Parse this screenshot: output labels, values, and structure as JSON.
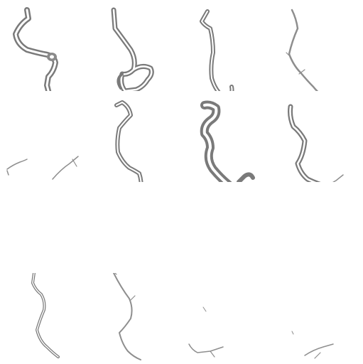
{
  "grid": {
    "rows": 4,
    "cols": 4,
    "background": "#ffffff",
    "stroke_color": "#7a7a7a",
    "highlight_color": "#ffffff"
  },
  "panels": [
    {
      "id": "panel-r1-c1",
      "subject": "hook-shaped-crack-shape"
    },
    {
      "id": "panel-r1-c2",
      "subject": "crack-with-loop-shape"
    },
    {
      "id": "panel-r1-c3",
      "subject": "vertical-crack-shape"
    },
    {
      "id": "panel-r1-c4",
      "subject": "thin-crack-shape"
    },
    {
      "id": "panel-r2-c1",
      "subject": "faint-crack-fragments"
    },
    {
      "id": "panel-r2-c2",
      "subject": "hooked-crack-shape"
    },
    {
      "id": "panel-r2-c3",
      "subject": "blurred-crack-shape"
    },
    {
      "id": "panel-r2-c4",
      "subject": "branching-crack-shape"
    },
    {
      "id": "panel-r3-c1",
      "subject": "empty"
    },
    {
      "id": "panel-r3-c2",
      "subject": "empty"
    },
    {
      "id": "panel-r3-c3",
      "subject": "empty"
    },
    {
      "id": "panel-r3-c4",
      "subject": "empty"
    },
    {
      "id": "panel-r4-c1",
      "subject": "faint-crack-shape"
    },
    {
      "id": "panel-r4-c2",
      "subject": "faint-hook-crack-shape"
    },
    {
      "id": "panel-r4-c3",
      "subject": "sparse-crack-fragments"
    },
    {
      "id": "panel-r4-c4",
      "subject": "sparse-crack-fragments"
    }
  ]
}
